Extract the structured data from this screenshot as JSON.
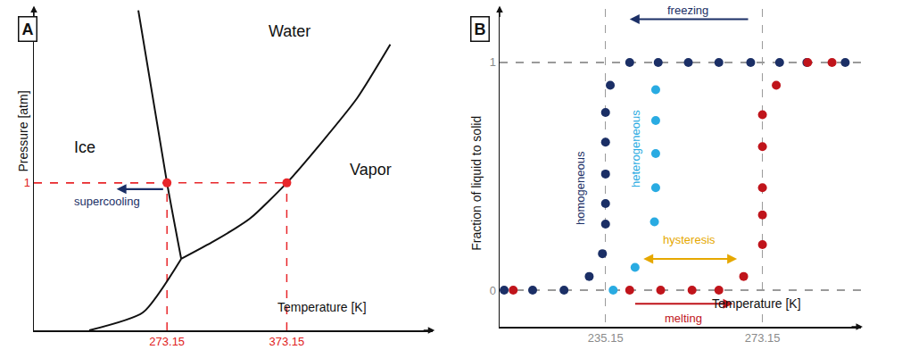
{
  "chart_data": [
    {
      "type": "line",
      "label": "A",
      "x_label": "Temperature [K]",
      "y_label": "Pressure [atm]",
      "xlim": [
        162,
        495
      ],
      "ylim": [
        0,
        2.18
      ],
      "xticks": [
        273.15,
        373.15
      ],
      "yticks": [
        1
      ],
      "grid": false,
      "series": [
        {
          "type": "line",
          "color": "#111111",
          "line_style": "solid",
          "x": [
            249.2,
            273.15,
            285.0
          ],
          "values": [
            2.17,
            1,
            0.485
          ]
        },
        {
          "type": "line",
          "color": "#111111",
          "line_style": "solid",
          "x": [
            285.0,
            312.6,
            342.4,
            373.15,
            402.1,
            432.0,
            459.6
          ],
          "values": [
            0.485,
            0.606,
            0.758,
            1,
            1.273,
            1.576,
            1.939
          ]
        },
        {
          "type": "line",
          "color": "#111111",
          "line_style": "solid",
          "x": [
            208.2,
            253.0,
            285.0
          ],
          "values": [
            0,
            0.121,
            0.485
          ]
        },
        {
          "type": "scatter",
          "color": "#e8262a",
          "marker": "circle",
          "line_style": "dashed",
          "x": [
            273.15,
            373.15
          ],
          "values": [
            1,
            1
          ]
        }
      ],
      "regions": [
        {
          "text": "Water",
          "x": 375.6,
          "y": 2.03
        },
        {
          "text": "Ice",
          "x": 204.4,
          "y": 1.24
        },
        {
          "text": "Vapor",
          "x": 443.2,
          "y": 1.09
        }
      ],
      "annotations": [
        {
          "text": "supercooling",
          "x": 223.1,
          "y": 0.873,
          "color": "#1b2f66",
          "arrow": {
            "from": [
              271,
              0.958
            ],
            "to": [
              231,
              0.958
            ],
            "both": false
          }
        }
      ],
      "vertical_annotations": []
    },
    {
      "type": "scatter",
      "label": "B",
      "x_label": "Temperature [K]",
      "y_label": "Fraction of liquid to solid",
      "xlim": [
        209.5,
        297
      ],
      "ylim": [
        -0.161,
        1.235
      ],
      "xticks": [
        235.15,
        273.15
      ],
      "yticks": [
        0,
        1
      ],
      "grid": true,
      "series": [
        {
          "type": "scatter",
          "color": "#1b2f66",
          "marker": "circle",
          "x": [
            210.6,
            217.5,
            225.1,
            231.2,
            234.4,
            235.15,
            235.15,
            235.15,
            235.15,
            235.15,
            236.3,
            241.0,
            247.9,
            255.2,
            262.6,
            270.3,
            277.3,
            283.9,
            293.2
          ],
          "values": [
            0,
            0,
            0,
            0.06,
            0.16,
            0.29,
            0.38,
            0.51,
            0.65,
            0.78,
            0.9,
            1,
            1,
            1,
            1,
            1,
            1,
            1,
            1
          ]
        },
        {
          "type": "scatter",
          "color": "#29abe2",
          "marker": "circle",
          "x": [
            237.0,
            242.3,
            247.0,
            247.3,
            247.3,
            247.3,
            247.3
          ],
          "values": [
            0,
            0.1,
            0.3,
            0.45,
            0.6,
            0.745,
            0.88
          ]
        },
        {
          "type": "scatter",
          "color": "#c0141b",
          "marker": "circle",
          "x": [
            212.8,
            241.0,
            248.5,
            256.1,
            262.6,
            268.6,
            273.15,
            273.15,
            273.15,
            273.15,
            273.15,
            276.5,
            284.1,
            290.0
          ],
          "values": [
            0,
            0,
            0,
            0,
            0,
            0.06,
            0.2,
            0.33,
            0.45,
            0.63,
            0.77,
            0.9,
            1,
            1
          ]
        }
      ],
      "regions": [],
      "annotations": [
        {
          "text": "freezing",
          "x": 255,
          "y": 1.23,
          "color": "#1b2f66",
          "arrow": {
            "from": [
              270,
              1.19
            ],
            "to": [
              241,
              1.19
            ],
            "both": false
          }
        },
        {
          "text": "melting",
          "x": 254,
          "y": -0.125,
          "color": "#c0141b",
          "arrow": {
            "from": [
              242,
              -0.06
            ],
            "to": [
              266,
              -0.06
            ],
            "both": false
          }
        },
        {
          "text": "hysteresis",
          "x": 255.5,
          "y": 0.22,
          "color": "#e6a800",
          "arrow": {
            "from": [
              244,
              0.137
            ],
            "to": [
              267,
              0.137
            ],
            "both": true
          }
        }
      ],
      "vertical_annotations": [
        {
          "text": "homogeneous",
          "x": 228.9,
          "y": 0.45,
          "color": "#1b2f66"
        },
        {
          "text": "heterogeneous",
          "x": 242.6,
          "y": 0.62,
          "color": "#29abe2"
        }
      ]
    }
  ]
}
